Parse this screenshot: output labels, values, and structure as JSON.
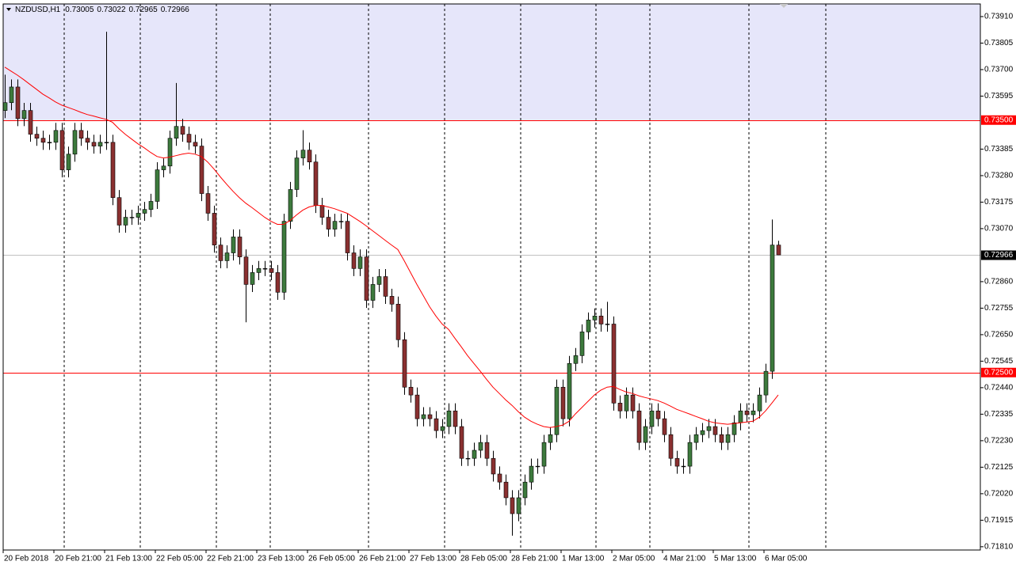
{
  "chart_data": {
    "type": "candlestick",
    "symbol": "NZDUSD,H1",
    "bull_color": "#3d7a3d",
    "bear_color": "#8a3030",
    "price_line_color": "#c0c0c0",
    "ylim": [
      0.71797,
      0.7396
    ],
    "yticks": [
      {
        "value": 0.7391,
        "label": "0.73910"
      },
      {
        "value": 0.73805,
        "label": "0.73805"
      },
      {
        "value": 0.737,
        "label": "0.73700"
      },
      {
        "value": 0.73595,
        "label": "0.73595"
      },
      {
        "value": 0.73385,
        "label": "0.73385"
      },
      {
        "value": 0.7328,
        "label": "0.73280"
      },
      {
        "value": 0.73175,
        "label": "0.73175"
      },
      {
        "value": 0.7307,
        "label": "0.73070"
      },
      {
        "value": 0.7286,
        "label": "0.72860"
      },
      {
        "value": 0.72755,
        "label": "0.72755"
      },
      {
        "value": 0.7265,
        "label": "0.72650"
      },
      {
        "value": 0.72545,
        "label": "0.72545"
      },
      {
        "value": 0.7244,
        "label": "0.72440"
      },
      {
        "value": 0.72335,
        "label": "0.72335"
      },
      {
        "value": 0.7223,
        "label": "0.72230"
      },
      {
        "value": 0.72125,
        "label": "0.72125"
      },
      {
        "value": 0.7202,
        "label": "0.72020"
      },
      {
        "value": 0.71915,
        "label": "0.71915"
      },
      {
        "value": 0.7181,
        "label": "0.71810"
      }
    ],
    "levels": [
      {
        "value": 0.735,
        "label": "0.73500",
        "color": "#ff0000",
        "fill_above": "#e6e6fa"
      },
      {
        "value": 0.725,
        "label": "0.72500",
        "color": "#ff0000"
      }
    ],
    "categories": [
      "20 Feb 2018",
      null,
      null,
      null,
      null,
      null,
      null,
      null,
      "20 Feb 21:00",
      null,
      null,
      null,
      null,
      null,
      null,
      null,
      "21 Feb 13:00",
      null,
      null,
      null,
      null,
      null,
      null,
      null,
      "22 Feb 05:00",
      null,
      null,
      null,
      null,
      null,
      null,
      null,
      "22 Feb 21:00",
      null,
      null,
      null,
      null,
      null,
      null,
      null,
      "23 Feb 13:00",
      null,
      null,
      null,
      null,
      null,
      null,
      null,
      "26 Feb 05:00",
      null,
      null,
      null,
      null,
      null,
      null,
      null,
      "26 Feb 21:00",
      null,
      null,
      null,
      null,
      null,
      null,
      null,
      "27 Feb 13:00",
      null,
      null,
      null,
      null,
      null,
      null,
      null,
      "28 Feb 05:00",
      null,
      null,
      null,
      null,
      null,
      null,
      null,
      "28 Feb 21:00",
      null,
      null,
      null,
      null,
      null,
      null,
      null,
      "1 Mar 13:00",
      null,
      null,
      null,
      null,
      null,
      null,
      null,
      "2 Mar 05:00",
      null,
      null,
      null,
      null,
      null,
      null,
      null,
      "4 Mar 21:00",
      null,
      null,
      null,
      null,
      null,
      null,
      null,
      "5 Mar 13:00",
      null,
      null,
      null,
      null,
      null,
      null,
      null,
      "6 Mar 05:00",
      null,
      null
    ],
    "open": [
      0.73538,
      0.73569,
      0.73631,
      0.73506,
      0.73538,
      0.73444,
      0.73428,
      0.73412,
      0.73412,
      0.73459,
      0.73303,
      0.73365,
      0.73459,
      0.73428,
      0.73412,
      0.73397,
      0.73412,
      0.73412,
      0.73193,
      0.73084,
      0.73115,
      0.73115,
      0.73131,
      0.73146,
      0.73178,
      0.73303,
      0.73318,
      0.73428,
      0.73475,
      0.73444,
      0.73412,
      0.73397,
      0.73209,
      0.73131,
      0.73005,
      0.72943,
      0.72974,
      0.73037,
      0.72958,
      0.72849,
      0.72896,
      0.72912,
      0.72912,
      0.72896,
      0.72818,
      0.73099,
      0.73225,
      0.7335,
      0.73381,
      0.73334,
      0.73162,
      0.73115,
      0.73068,
      0.73099,
      0.73099,
      0.72974,
      0.72912,
      0.72958,
      0.72786,
      0.72849,
      0.7288,
      0.72802,
      0.72771,
      0.7263,
      0.72442,
      0.72411,
      0.72317,
      0.72333,
      0.72317,
      0.7227,
      0.72286,
      0.72348,
      0.72286,
      0.7216,
      0.7216,
      0.72192,
      0.72223,
      0.7216,
      0.72098,
      0.72066,
      0.72004,
      0.71941,
      0.72004,
      0.72066,
      0.72129,
      0.72129,
      0.72223,
      0.72254,
      0.72442,
      0.72317,
      0.72536,
      0.72567,
      0.72661,
      0.72708,
      0.72724,
      0.72692,
      0.72692,
      0.72379,
      0.72348,
      0.72411,
      0.72348,
      0.72223,
      0.72286,
      0.72348,
      0.72317,
      0.72254,
      0.7216,
      0.72129,
      0.72129,
      0.72223,
      0.72254,
      0.7227,
      0.72286,
      0.72254,
      0.72223,
      0.72254,
      0.72301,
      0.72348,
      0.72333,
      0.72348,
      0.72411,
      0.72505,
      0.73005
    ],
    "high": [
      0.7368,
      0.73661,
      0.73661,
      0.73568,
      0.73568,
      0.73474,
      0.73458,
      0.73442,
      0.73489,
      0.73489,
      0.73395,
      0.73489,
      0.73489,
      0.73458,
      0.73442,
      0.73442,
      0.7385,
      0.73442,
      0.73223,
      0.73145,
      0.73145,
      0.73161,
      0.73176,
      0.73208,
      0.73333,
      0.73348,
      0.73458,
      0.73647,
      0.73505,
      0.73474,
      0.73442,
      0.73427,
      0.73239,
      0.73161,
      0.73035,
      0.73004,
      0.73067,
      0.73067,
      0.72988,
      0.72926,
      0.72942,
      0.72942,
      0.72942,
      0.72926,
      0.73129,
      0.73255,
      0.7338,
      0.7346,
      0.73411,
      0.73364,
      0.73192,
      0.73145,
      0.73129,
      0.73129,
      0.73129,
      0.73004,
      0.72988,
      0.72988,
      0.72879,
      0.7291,
      0.7291,
      0.72832,
      0.72801,
      0.7266,
      0.72472,
      0.72441,
      0.72363,
      0.72363,
      0.72347,
      0.72316,
      0.72378,
      0.72378,
      0.72316,
      0.7219,
      0.72222,
      0.72253,
      0.72253,
      0.7219,
      0.72128,
      0.72096,
      0.72034,
      0.72034,
      0.72096,
      0.72159,
      0.72159,
      0.72253,
      0.72284,
      0.72472,
      0.72472,
      0.72566,
      0.72597,
      0.72691,
      0.72738,
      0.72754,
      0.72754,
      0.7278,
      0.72722,
      0.72409,
      0.72441,
      0.72441,
      0.72378,
      0.72316,
      0.72378,
      0.72378,
      0.72347,
      0.72284,
      0.7219,
      0.72159,
      0.72253,
      0.72284,
      0.723,
      0.72316,
      0.72316,
      0.72284,
      0.72284,
      0.72331,
      0.72378,
      0.72378,
      0.72378,
      0.72441,
      0.72535,
      0.73106,
      0.73022
    ],
    "low": [
      0.73508,
      0.73539,
      0.73476,
      0.73476,
      0.73414,
      0.73398,
      0.73382,
      0.73382,
      0.73382,
      0.73273,
      0.73273,
      0.73335,
      0.73398,
      0.73382,
      0.73367,
      0.73367,
      0.73382,
      0.73163,
      0.73054,
      0.73054,
      0.73085,
      0.73085,
      0.73101,
      0.73116,
      0.73148,
      0.73273,
      0.73288,
      0.73398,
      0.73414,
      0.73382,
      0.73367,
      0.73179,
      0.73101,
      0.72975,
      0.72913,
      0.72913,
      0.72944,
      0.72928,
      0.72699,
      0.72819,
      0.72866,
      0.72882,
      0.72866,
      0.72788,
      0.72788,
      0.73069,
      0.73195,
      0.7332,
      0.73304,
      0.73132,
      0.73085,
      0.73038,
      0.73038,
      0.73069,
      0.72944,
      0.72882,
      0.72882,
      0.72756,
      0.72756,
      0.72819,
      0.72772,
      0.72741,
      0.726,
      0.72412,
      0.72381,
      0.72287,
      0.72287,
      0.72287,
      0.7224,
      0.7224,
      0.72256,
      0.72256,
      0.7213,
      0.7213,
      0.7213,
      0.72162,
      0.7213,
      0.72068,
      0.72036,
      0.71974,
      0.71854,
      0.71911,
      0.71974,
      0.72036,
      0.72099,
      0.72099,
      0.72193,
      0.72224,
      0.72287,
      0.72287,
      0.72506,
      0.72537,
      0.72631,
      0.72678,
      0.72662,
      0.72662,
      0.72349,
      0.72318,
      0.72318,
      0.72318,
      0.72193,
      0.72193,
      0.72256,
      0.72287,
      0.72224,
      0.7213,
      0.72099,
      0.72099,
      0.72099,
      0.72193,
      0.72224,
      0.7224,
      0.72224,
      0.72193,
      0.72193,
      0.72224,
      0.72271,
      0.72303,
      0.72303,
      0.72318,
      0.72381,
      0.72475,
      0.72965
    ],
    "close": [
      0.73569,
      0.73631,
      0.73506,
      0.73538,
      0.73444,
      0.73428,
      0.73412,
      0.73412,
      0.73459,
      0.73303,
      0.73365,
      0.73459,
      0.73428,
      0.73412,
      0.73397,
      0.73412,
      0.73412,
      0.73193,
      0.73084,
      0.73115,
      0.73115,
      0.73131,
      0.73146,
      0.73178,
      0.73303,
      0.73318,
      0.73428,
      0.73475,
      0.73444,
      0.73412,
      0.73397,
      0.73209,
      0.73131,
      0.73005,
      0.72943,
      0.72974,
      0.73037,
      0.72958,
      0.72849,
      0.72896,
      0.72912,
      0.72912,
      0.72896,
      0.72818,
      0.73099,
      0.73225,
      0.7335,
      0.73381,
      0.73334,
      0.73162,
      0.73115,
      0.73068,
      0.73099,
      0.73099,
      0.72974,
      0.72912,
      0.72958,
      0.72786,
      0.72849,
      0.7288,
      0.72802,
      0.72771,
      0.7263,
      0.72442,
      0.72411,
      0.72317,
      0.72333,
      0.72317,
      0.7227,
      0.72286,
      0.72348,
      0.72286,
      0.7216,
      0.7216,
      0.72192,
      0.72223,
      0.7216,
      0.72098,
      0.72066,
      0.72004,
      0.71941,
      0.72004,
      0.72066,
      0.72129,
      0.72129,
      0.72223,
      0.72254,
      0.72442,
      0.72317,
      0.72536,
      0.72567,
      0.72661,
      0.72708,
      0.72724,
      0.72692,
      0.72692,
      0.72379,
      0.72348,
      0.72411,
      0.72348,
      0.72223,
      0.72286,
      0.72348,
      0.72317,
      0.72254,
      0.7216,
      0.72129,
      0.72129,
      0.72223,
      0.72254,
      0.7227,
      0.72286,
      0.72254,
      0.72223,
      0.72254,
      0.72301,
      0.72348,
      0.72333,
      0.72348,
      0.72411,
      0.72505,
      0.73005,
      0.72966
    ],
    "overlays": [
      {
        "color": "#ff0000",
        "values": [
          0.7371,
          0.73694,
          0.73678,
          0.7366,
          0.73641,
          0.73622,
          0.73603,
          0.73588,
          0.73572,
          0.73559,
          0.7355,
          0.73541,
          0.73531,
          0.73522,
          0.73516,
          0.73509,
          0.73503,
          0.73491,
          0.73466,
          0.73444,
          0.73425,
          0.73406,
          0.7339,
          0.73372,
          0.73356,
          0.7335,
          0.73353,
          0.73359,
          0.73365,
          0.73369,
          0.73365,
          0.73356,
          0.73334,
          0.73306,
          0.73275,
          0.73246,
          0.73218,
          0.73193,
          0.73171,
          0.73153,
          0.73134,
          0.73115,
          0.73099,
          0.73087,
          0.73087,
          0.73102,
          0.73124,
          0.73143,
          0.73156,
          0.73162,
          0.73162,
          0.73156,
          0.73149,
          0.7314,
          0.73131,
          0.73115,
          0.73099,
          0.73081,
          0.73062,
          0.73043,
          0.73024,
          0.73005,
          0.72987,
          0.72943,
          0.72896,
          0.72849,
          0.72805,
          0.72761,
          0.72724,
          0.72692,
          0.72671,
          0.72636,
          0.72602,
          0.72567,
          0.72536,
          0.72505,
          0.72473,
          0.72442,
          0.72417,
          0.72392,
          0.7237,
          0.72345,
          0.72323,
          0.72307,
          0.72295,
          0.72286,
          0.72282,
          0.72286,
          0.72292,
          0.72307,
          0.72336,
          0.72361,
          0.72386,
          0.72411,
          0.7243,
          0.72442,
          0.72445,
          0.72433,
          0.72423,
          0.72417,
          0.72408,
          0.72401,
          0.72395,
          0.72389,
          0.72379,
          0.72367,
          0.72354,
          0.72345,
          0.72336,
          0.72326,
          0.72317,
          0.72307,
          0.72301,
          0.72298,
          0.72295,
          0.72298,
          0.72301,
          0.72304,
          0.72307,
          0.72323,
          0.72348,
          0.72379,
          0.72411
        ]
      }
    ]
  }
}
